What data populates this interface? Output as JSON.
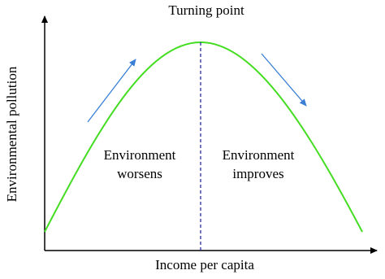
{
  "title": "Turning point",
  "x_axis_label": "Income per capita",
  "y_axis_label": "Environmental pollution",
  "regions": [
    {
      "lines": [
        "Environment",
        "worsens"
      ]
    },
    {
      "lines": [
        "Environment",
        "improves"
      ]
    }
  ]
}
